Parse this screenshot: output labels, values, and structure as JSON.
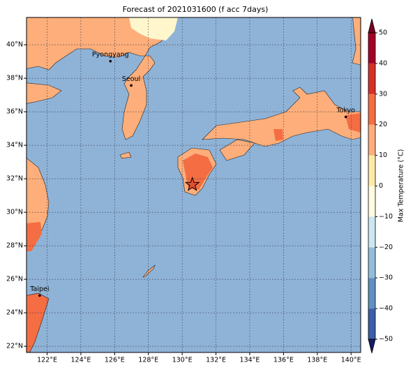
{
  "chart_data": {
    "type": "map",
    "title": "Forecast of 2021031600 (f acc 7days)",
    "xlim": [
      120.78,
      140.57
    ],
    "ylim": [
      21.63,
      41.63
    ],
    "xticks": [
      {
        "value": 122,
        "label": "122°E"
      },
      {
        "value": 124,
        "label": "124°E"
      },
      {
        "value": 126,
        "label": "126°E"
      },
      {
        "value": 128,
        "label": "128°E"
      },
      {
        "value": 130,
        "label": "130°E"
      },
      {
        "value": 132,
        "label": "132°E"
      },
      {
        "value": 134,
        "label": "134°E"
      },
      {
        "value": 136,
        "label": "136°E"
      },
      {
        "value": 138,
        "label": "138°E"
      },
      {
        "value": 140,
        "label": "140°E"
      }
    ],
    "yticks": [
      {
        "value": 22,
        "label": "22°N"
      },
      {
        "value": 24,
        "label": "24°N"
      },
      {
        "value": 26,
        "label": "26°N"
      },
      {
        "value": 28,
        "label": "28°N"
      },
      {
        "value": 30,
        "label": "30°N"
      },
      {
        "value": 32,
        "label": "32°N"
      },
      {
        "value": 34,
        "label": "34°N"
      },
      {
        "value": 36,
        "label": "36°N"
      },
      {
        "value": 38,
        "label": "38°N"
      },
      {
        "value": 40,
        "label": "40°N"
      }
    ],
    "grid": true,
    "cities": [
      {
        "name": "Pyongyang",
        "lon": 125.75,
        "lat": 39.02
      },
      {
        "name": "Seoul",
        "lon": 126.98,
        "lat": 37.57
      },
      {
        "name": "Tokyo",
        "lon": 139.69,
        "lat": 35.69
      },
      {
        "name": "Taipei",
        "lon": 121.56,
        "lat": 25.03
      }
    ],
    "marker": {
      "lon": 130.6,
      "lat": 31.65
    },
    "colorbar": {
      "label": "Max Temperature (°C)",
      "ticks": [
        {
          "value": -50,
          "label": "−50"
        },
        {
          "value": -40,
          "label": "−40"
        },
        {
          "value": -30,
          "label": "−30"
        },
        {
          "value": -20,
          "label": "−20"
        },
        {
          "value": -10,
          "label": "−10"
        },
        0,
        10,
        20,
        30,
        40,
        50
      ],
      "colors": [
        "#22308c",
        "#3b5ea8",
        "#5f90c2",
        "#92bddb",
        "#cbe7f0",
        "#fffbe0",
        "#fee9a6",
        "#fdae7a",
        "#f46d43",
        "#d73027",
        "#a50026"
      ],
      "under": "#131c66",
      "over": "#7a0020"
    }
  }
}
